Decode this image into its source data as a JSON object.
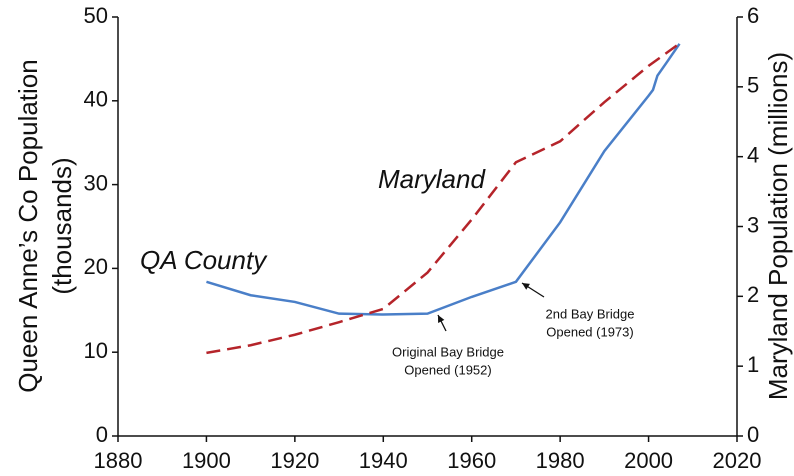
{
  "chart_data": {
    "type": "line",
    "y_label": [
      "Queen Anne’s Co Population",
      "(thousands)"
    ],
    "y2_label": "Maryland Population (millions)",
    "xlim": [
      1880,
      2020
    ],
    "xticks": [
      1880,
      1900,
      1920,
      1940,
      1960,
      1980,
      2000,
      2020
    ],
    "ylim": [
      0,
      50
    ],
    "yticks": [
      0,
      10,
      20,
      30,
      40,
      50
    ],
    "y2lim": [
      0,
      6
    ],
    "y2ticks": [
      0,
      1,
      2,
      3,
      4,
      5,
      6
    ],
    "series": [
      {
        "name": "QA County",
        "color": "#4a7fc8",
        "dash": false,
        "x": [
          1900,
          1910,
          1920,
          1930,
          1940,
          1950,
          1960,
          1970,
          1980,
          1990,
          2000,
          2001,
          2002,
          2004,
          2007
        ],
        "values": [
          18.4,
          16.8,
          16.0,
          14.6,
          14.5,
          14.6,
          16.6,
          18.4,
          25.5,
          34.0,
          40.6,
          41.3,
          43.0,
          44.5,
          46.8
        ]
      },
      {
        "name": "Maryland",
        "color": "#b5242a",
        "dash": true,
        "axis": "y2",
        "x": [
          1900,
          1910,
          1920,
          1930,
          1940,
          1950,
          1960,
          1970,
          1980,
          1990,
          2000,
          2007
        ],
        "values": [
          1.19,
          1.3,
          1.45,
          1.63,
          1.82,
          2.34,
          3.1,
          3.92,
          4.22,
          4.78,
          5.3,
          5.62
        ]
      }
    ],
    "annotations": [
      {
        "lines": [
          "Original Bay Bridge",
          "Opened (1952)"
        ]
      },
      {
        "lines": [
          "2nd Bay Bridge",
          "Opened (1973)"
        ]
      }
    ]
  }
}
